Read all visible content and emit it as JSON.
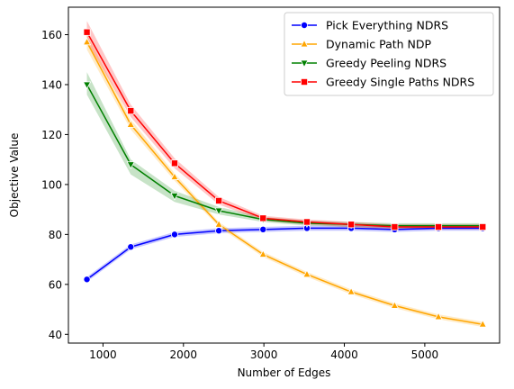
{
  "chart_data": {
    "type": "line",
    "title": "",
    "xlabel": "Number of Edges",
    "ylabel": "Objective Value",
    "xlim": [
      570,
      5930
    ],
    "ylim": [
      36.5,
      171
    ],
    "xticks": [
      1000,
      2000,
      3000,
      4000,
      5000
    ],
    "xtick_labels": [
      "1000",
      "2000",
      "3000",
      "4000",
      "5000"
    ],
    "yticks": [
      40,
      60,
      80,
      100,
      120,
      140,
      160
    ],
    "ytick_labels": [
      "40",
      "60",
      "80",
      "100",
      "120",
      "140",
      "160"
    ],
    "grid": false,
    "legend_position": "top-right",
    "x": [
      800,
      1345,
      1890,
      2440,
      2990,
      3535,
      4085,
      4625,
      5170,
      5720
    ],
    "series": [
      {
        "name": "Pick Everything NDRS",
        "color": "#0000ff",
        "marker": "circle",
        "values": [
          62,
          75,
          80,
          81.5,
          82,
          82.5,
          82.5,
          82,
          82.5,
          82.5
        ],
        "band": [
          [
            61,
            63
          ],
          [
            74,
            76
          ],
          [
            79,
            81
          ],
          [
            80.5,
            82.5
          ],
          [
            81,
            83
          ],
          [
            81.5,
            83.5
          ],
          [
            81.5,
            83.5
          ],
          [
            81,
            83
          ],
          [
            81.5,
            83.5
          ],
          [
            81.5,
            83.5
          ]
        ]
      },
      {
        "name": "Dynamic Path NDP",
        "color": "#ffa500",
        "marker": "triangle-up",
        "values": [
          157,
          124,
          103,
          84,
          72,
          64,
          57,
          51.5,
          47,
          44
        ],
        "band": [
          [
            154,
            160
          ],
          [
            122,
            126
          ],
          [
            101.5,
            104.5
          ],
          [
            83,
            85
          ],
          [
            71,
            73
          ],
          [
            63,
            65
          ],
          [
            56,
            58
          ],
          [
            50.5,
            52.5
          ],
          [
            46,
            48
          ],
          [
            43,
            45
          ]
        ]
      },
      {
        "name": "Greedy Peeling NDRS",
        "color": "#008000",
        "marker": "triangle-down",
        "values": [
          140,
          108,
          95.5,
          89.5,
          86,
          84.5,
          84,
          83.5,
          83.5,
          83.5
        ],
        "band": [
          [
            136,
            145
          ],
          [
            104,
            110
          ],
          [
            93,
            97.5
          ],
          [
            88,
            91
          ],
          [
            85,
            87
          ],
          [
            83.5,
            85.5
          ],
          [
            83,
            85
          ],
          [
            82.5,
            84.5
          ],
          [
            82.5,
            84.5
          ],
          [
            82.5,
            84.5
          ]
        ]
      },
      {
        "name": "Greedy Single Paths NDRS",
        "color": "#ff0000",
        "marker": "square",
        "values": [
          161,
          129.5,
          108.5,
          93.5,
          86.5,
          85,
          84,
          83,
          83,
          83
        ],
        "band": [
          [
            157,
            165.5
          ],
          [
            127,
            132
          ],
          [
            106.5,
            110.5
          ],
          [
            92,
            95
          ],
          [
            85.5,
            87.5
          ],
          [
            84,
            86
          ],
          [
            83,
            85
          ],
          [
            82,
            84
          ],
          [
            82,
            84
          ],
          [
            82,
            84
          ]
        ]
      }
    ]
  }
}
